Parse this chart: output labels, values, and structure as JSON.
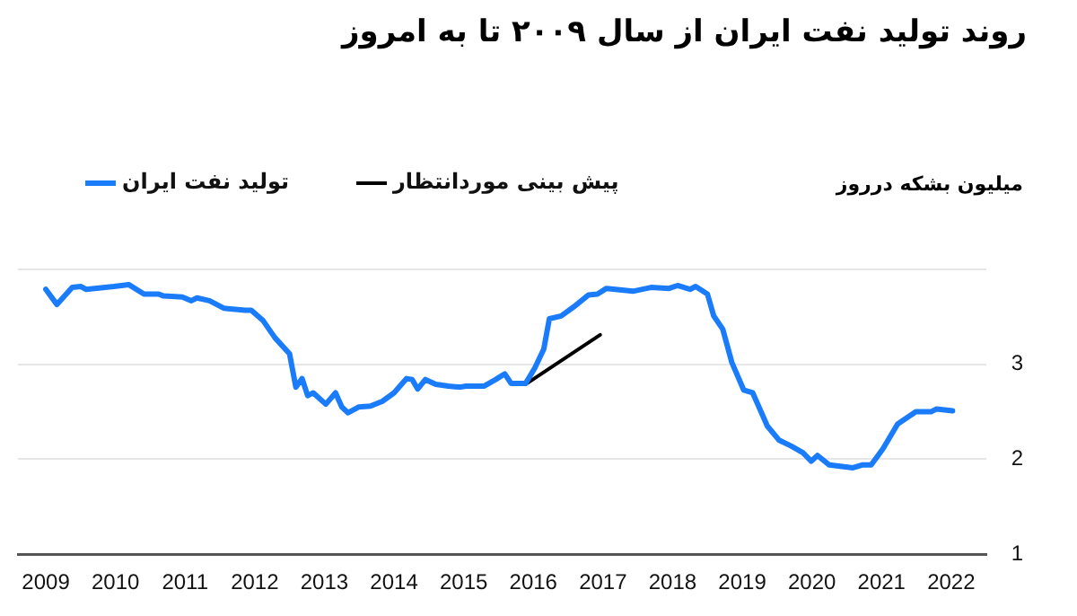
{
  "chart_data": {
    "type": "line",
    "title": "روند تولید نفت ایران از سال ۲۰۰۹ تا به امروز",
    "ylabel": "میلیون بشکه درروز",
    "xlim": [
      2008.6,
      2022.5
    ],
    "xticks": [
      2009,
      2010,
      2011,
      2012,
      2013,
      2014,
      2015,
      2016,
      2017,
      2018,
      2019,
      2020,
      2021,
      2022
    ],
    "ylim": [
      1,
      4
    ],
    "yticks": [
      1,
      2,
      3,
      {
        "value": 4,
        "label": null
      }
    ],
    "grid": "y",
    "legend": "top left",
    "marker": "none",
    "line_style": "solid",
    "series": [
      {
        "name": "تولید نفت ایران",
        "color": "#1a7cfa",
        "x": [
          2009.0,
          2009.16,
          2009.38,
          2009.5,
          2009.58,
          2009.98,
          2010.19,
          2010.41,
          2010.62,
          2010.69,
          2010.96,
          2011.09,
          2011.17,
          2011.35,
          2011.56,
          2011.86,
          2011.95,
          2012.12,
          2012.29,
          2012.5,
          2012.59,
          2012.68,
          2012.76,
          2012.84,
          2013.02,
          2013.16,
          2013.25,
          2013.34,
          2013.49,
          2013.66,
          2013.83,
          2014.0,
          2014.18,
          2014.26,
          2014.34,
          2014.45,
          2014.6,
          2014.78,
          2014.95,
          2015.03,
          2015.29,
          2015.46,
          2015.59,
          2015.68,
          2015.89,
          2016.02,
          2016.15,
          2016.23,
          2016.4,
          2016.57,
          2016.79,
          2016.92,
          2017.05,
          2017.43,
          2017.69,
          2017.95,
          2018.07,
          2018.25,
          2018.33,
          2018.5,
          2018.59,
          2018.72,
          2018.85,
          2019.02,
          2019.15,
          2019.36,
          2019.53,
          2019.7,
          2019.87,
          2019.99,
          2020.08,
          2020.25,
          2020.59,
          2020.72,
          2020.85,
          2021.02,
          2021.23,
          2021.49,
          2021.71,
          2021.79,
          2022.02
        ],
        "values": [
          3.79,
          3.63,
          3.81,
          3.82,
          3.79,
          3.82,
          3.84,
          3.74,
          3.74,
          3.72,
          3.71,
          3.67,
          3.7,
          3.67,
          3.59,
          3.57,
          3.57,
          3.46,
          3.28,
          3.11,
          2.76,
          2.85,
          2.67,
          2.7,
          2.58,
          2.7,
          2.55,
          2.49,
          2.55,
          2.56,
          2.61,
          2.7,
          2.85,
          2.84,
          2.74,
          2.84,
          2.79,
          2.77,
          2.76,
          2.77,
          2.77,
          2.84,
          2.9,
          2.8,
          2.8,
          2.96,
          3.16,
          3.48,
          3.51,
          3.6,
          3.73,
          3.74,
          3.8,
          3.77,
          3.81,
          3.8,
          3.83,
          3.79,
          3.82,
          3.74,
          3.51,
          3.37,
          3.02,
          2.73,
          2.7,
          2.35,
          2.2,
          2.14,
          2.07,
          1.98,
          2.04,
          1.94,
          1.91,
          1.94,
          1.94,
          2.11,
          2.37,
          2.5,
          2.5,
          2.53,
          2.51
        ]
      },
      {
        "name": "پیش بینی موردانتظار",
        "color": "#000000",
        "x": [
          2015.89,
          2016.96
        ],
        "values": [
          2.79,
          3.31
        ]
      }
    ]
  }
}
